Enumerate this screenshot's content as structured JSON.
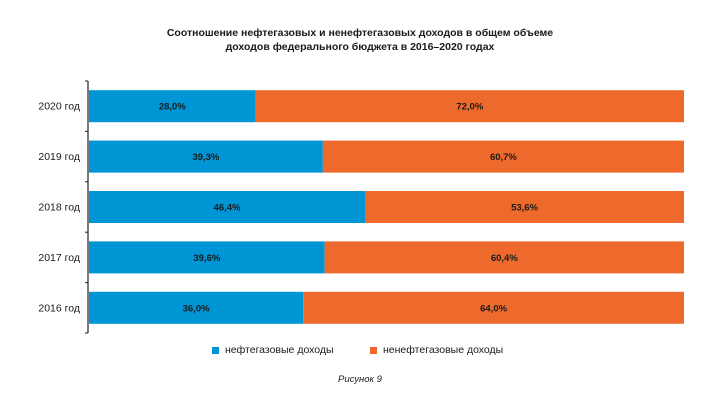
{
  "chart_data": {
    "type": "bar",
    "orientation": "horizontal",
    "stacked": true,
    "title_line1": "Соотношение нефтегазовых и ненефтегазовых доходов в общем объеме",
    "title_line2": "доходов федерального бюджета в 2016–2020 годах",
    "categories": [
      "2020 год",
      "2019 год",
      "2018 год",
      "2017 год",
      "2016 год"
    ],
    "series": [
      {
        "name": "нефтегазовые доходы",
        "color": "#0095D5",
        "values": [
          28.0,
          39.3,
          46.4,
          39.6,
          36.0
        ],
        "labels": [
          "28,0%",
          "39,3%",
          "46,4%",
          "39,6%",
          "36,0%"
        ]
      },
      {
        "name": "ненефтегазовые доходы",
        "color": "#EE6A2C",
        "values": [
          72.0,
          60.7,
          53.6,
          60.4,
          64.0
        ],
        "labels": [
          "72,0%",
          "60,7%",
          "53,6%",
          "60,4%",
          "64,0%"
        ]
      }
    ],
    "xlim": [
      0,
      100
    ],
    "legend_position": "bottom",
    "grid": false
  },
  "caption": "Рисунок 9"
}
